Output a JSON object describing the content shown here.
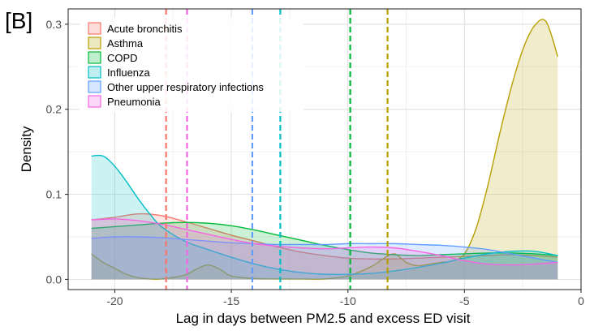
{
  "panel_label": "[B]",
  "chart_data": {
    "type": "area",
    "title": "",
    "xlabel": "Lag in days between PM2.5 and excess ED visit",
    "ylabel": "Density",
    "xlim": [
      -22.0,
      0.0
    ],
    "ylim": [
      -0.012,
      0.318
    ],
    "x_ticks": [
      -20,
      -15,
      -10,
      -5,
      0
    ],
    "y_ticks": [
      0.0,
      0.1,
      0.2,
      0.3
    ],
    "x_tick_labels": [
      "-20",
      "-15",
      "-10",
      "-5",
      "0"
    ],
    "y_tick_labels": [
      "0.0",
      "0.1",
      "0.2",
      "0.3"
    ],
    "grid": true,
    "legend_position": "top-left",
    "series": [
      {
        "name": "Acute bronchitis",
        "color": "#F8766D",
        "median": -17.8,
        "x": [
          -21,
          -20,
          -19,
          -18,
          -17,
          -16,
          -15,
          -14,
          -13,
          -12,
          -11,
          -10,
          -9,
          -8,
          -7,
          -6,
          -5,
          -4,
          -3,
          -2,
          -1
        ],
        "y": [
          0.07,
          0.073,
          0.077,
          0.075,
          0.068,
          0.06,
          0.052,
          0.045,
          0.038,
          0.032,
          0.028,
          0.025,
          0.024,
          0.024,
          0.025,
          0.026,
          0.027,
          0.028,
          0.029,
          0.028,
          0.026
        ]
      },
      {
        "name": "Asthma",
        "color": "#B79F00",
        "median": -8.3,
        "x": [
          -21,
          -20.5,
          -20,
          -19.5,
          -19,
          -18.5,
          -18,
          -17,
          -16.5,
          -16,
          -15.5,
          -15,
          -14,
          -13,
          -12,
          -11,
          -10,
          -9,
          -8.5,
          -8,
          -7.5,
          -7,
          -6.5,
          -6,
          -5.5,
          -5,
          -4.5,
          -4,
          -3.5,
          -3,
          -2.5,
          -2,
          -1.5,
          -1
        ],
        "y": [
          0.03,
          0.02,
          0.013,
          0.006,
          0.002,
          0.0005,
          0.0005,
          0.005,
          0.012,
          0.017,
          0.012,
          0.004,
          0.001,
          0.0005,
          0.0005,
          0.0005,
          0.004,
          0.015,
          0.024,
          0.03,
          0.02,
          0.016,
          0.018,
          0.02,
          0.022,
          0.03,
          0.06,
          0.11,
          0.17,
          0.225,
          0.27,
          0.298,
          0.303,
          0.262
        ]
      },
      {
        "name": "COPD",
        "color": "#00BA38",
        "median": -9.9,
        "x": [
          -21,
          -20,
          -19,
          -18,
          -17,
          -16,
          -15,
          -14,
          -13,
          -12,
          -11,
          -10,
          -9,
          -8,
          -7,
          -6,
          -5,
          -4,
          -3,
          -2,
          -1
        ],
        "y": [
          0.06,
          0.062,
          0.064,
          0.066,
          0.067,
          0.066,
          0.063,
          0.058,
          0.052,
          0.046,
          0.04,
          0.035,
          0.031,
          0.029,
          0.028,
          0.029,
          0.03,
          0.031,
          0.031,
          0.03,
          0.028
        ]
      },
      {
        "name": "Influenza",
        "color": "#00BFC4",
        "median": -12.9,
        "x": [
          -21,
          -20.5,
          -20,
          -19.5,
          -19,
          -18.5,
          -18,
          -17,
          -16,
          -15,
          -14,
          -13,
          -12,
          -11,
          -10,
          -9,
          -8,
          -7,
          -6,
          -5,
          -4,
          -3,
          -2,
          -1
        ],
        "y": [
          0.145,
          0.145,
          0.133,
          0.115,
          0.095,
          0.077,
          0.062,
          0.045,
          0.035,
          0.026,
          0.018,
          0.012,
          0.008,
          0.006,
          0.006,
          0.007,
          0.01,
          0.014,
          0.019,
          0.025,
          0.03,
          0.033,
          0.033,
          0.028
        ]
      },
      {
        "name": "Other upper respiratory infections",
        "color": "#619CFF",
        "median": -14.1,
        "x": [
          -21,
          -20,
          -19,
          -18,
          -17,
          -16,
          -15,
          -14,
          -13,
          -12,
          -11,
          -10,
          -9,
          -8,
          -7,
          -6,
          -5,
          -4,
          -3,
          -2,
          -1
        ],
        "y": [
          0.048,
          0.05,
          0.05,
          0.049,
          0.047,
          0.045,
          0.043,
          0.042,
          0.041,
          0.041,
          0.041,
          0.042,
          0.042,
          0.042,
          0.041,
          0.04,
          0.038,
          0.035,
          0.03,
          0.025,
          0.02
        ]
      },
      {
        "name": "Pneumonia",
        "color": "#F564E3",
        "median": -16.9,
        "x": [
          -21,
          -20,
          -19,
          -18,
          -17,
          -16,
          -15,
          -14,
          -13,
          -12,
          -11,
          -10,
          -9,
          -8,
          -7,
          -6,
          -5,
          -4,
          -3,
          -2,
          -1
        ],
        "y": [
          0.07,
          0.071,
          0.069,
          0.065,
          0.059,
          0.053,
          0.047,
          0.042,
          0.039,
          0.037,
          0.036,
          0.037,
          0.038,
          0.037,
          0.033,
          0.028,
          0.022,
          0.018,
          0.017,
          0.018,
          0.02
        ]
      }
    ]
  }
}
